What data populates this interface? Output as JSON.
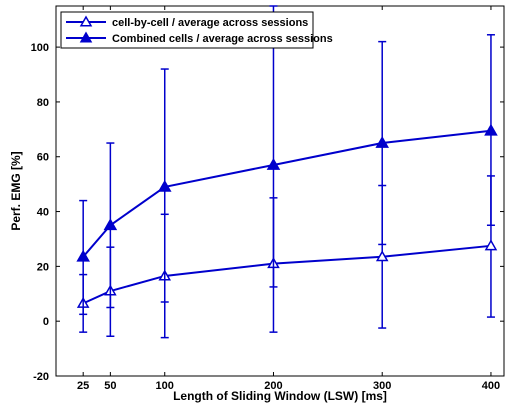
{
  "chart_data": {
    "type": "line",
    "xlabel": "Length of Sliding Window (LSW) [ms]",
    "ylabel": "Perf. EMG [%]",
    "xlim": [
      0,
      412
    ],
    "ylim": [
      -20,
      115
    ],
    "xticks": [
      25,
      50,
      100,
      200,
      300,
      400
    ],
    "yticks": [
      -20,
      0,
      20,
      40,
      60,
      80,
      100
    ],
    "legend_position": "top-left",
    "grid": false,
    "series": [
      {
        "name": "cell-by-cell / average across sessions",
        "marker": "open-triangle",
        "color": "#0000cc",
        "x": [
          25,
          50,
          100,
          200,
          300,
          400
        ],
        "y": [
          6.5,
          11,
          16.5,
          21,
          23.5,
          27.5
        ],
        "err_low": [
          -4,
          -5.5,
          -6,
          -4,
          -2.5,
          1.5
        ],
        "err_high": [
          17,
          27,
          39,
          45,
          49.5,
          53
        ]
      },
      {
        "name": "Combined cells / average across sessions",
        "marker": "filled-triangle",
        "color": "#0000cc",
        "x": [
          25,
          50,
          100,
          200,
          300,
          400
        ],
        "y": [
          23.5,
          35,
          49,
          57,
          65,
          69.5
        ],
        "err_low": [
          2.5,
          5,
          7,
          12.5,
          28,
          35
        ],
        "err_high": [
          44,
          65,
          92,
          115,
          102,
          104.5
        ]
      }
    ]
  }
}
